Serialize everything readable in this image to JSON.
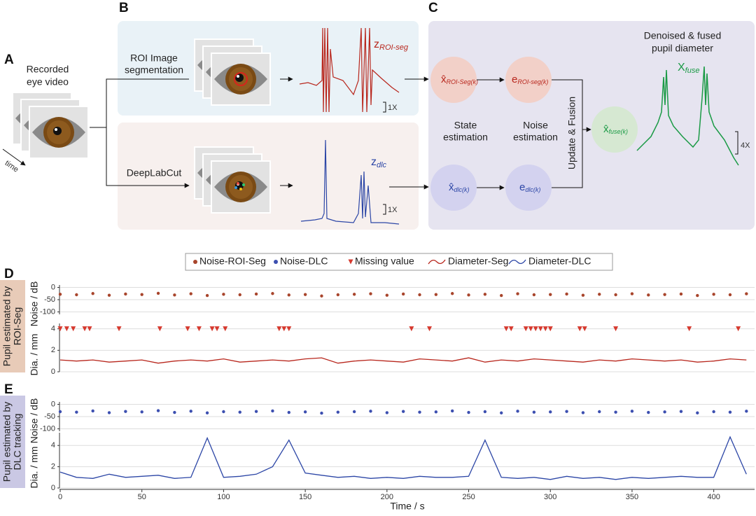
{
  "diagram": {
    "panel_labels": [
      "A",
      "B",
      "C",
      "D",
      "E"
    ],
    "recorded": [
      "Recorded",
      "eye video"
    ],
    "time": "time",
    "roi_seg": [
      "ROI Image",
      "segmentation"
    ],
    "deeplabcut": "DeepLabCut",
    "z_roi": {
      "main": "z",
      "sub": "ROI-seg"
    },
    "z_dlc": {
      "main": "z",
      "sub": "dlc"
    },
    "scale_roi": "1X",
    "scale_dlc": "1X",
    "state_estimation": [
      "State",
      "estimation"
    ],
    "noise_estimation": [
      "Noise",
      "estimation"
    ],
    "update_fusion": "Update & Fusion",
    "fused_title": [
      "Denoised & fused",
      "pupil diameter"
    ],
    "x_fuse": {
      "main": "X",
      "sub": "fuse"
    },
    "scale_fuse": "4X",
    "nodes": [
      {
        "main": "x̂",
        "sub": "ROI-Seg(k)"
      },
      {
        "main": "e",
        "sub": "ROI-seg(k)"
      },
      {
        "main": "x̂",
        "sub": "dlc(k)"
      },
      {
        "main": "e",
        "sub": "dlc(k)"
      },
      {
        "main": "x̂",
        "sub": "fuse(k)"
      }
    ],
    "side_labels": [
      [
        "Pupil estimated by",
        "ROI-Seg"
      ],
      [
        "Pupil estimated by",
        "DLC tracking"
      ]
    ]
  },
  "chart_data": [
    {
      "type": "scatter",
      "ylabel": "Noise / dB",
      "xlim": [
        0,
        425
      ],
      "ylim": [
        -110,
        10
      ],
      "yticks": [
        0,
        -50,
        -100
      ],
      "grid": true,
      "x": [
        0,
        10,
        20,
        30,
        40,
        50,
        60,
        70,
        80,
        90,
        100,
        110,
        120,
        130,
        140,
        150,
        160,
        170,
        180,
        190,
        200,
        210,
        220,
        230,
        240,
        250,
        260,
        270,
        280,
        290,
        300,
        310,
        320,
        330,
        340,
        350,
        360,
        370,
        380,
        390,
        400,
        410,
        420
      ],
      "series": [
        {
          "name": "Noise-ROI-Seg",
          "color": "#a8452c",
          "values": [
            -28,
            -30,
            -25,
            -32,
            -27,
            -29,
            -24,
            -31,
            -26,
            -33,
            -28,
            -30,
            -27,
            -25,
            -31,
            -29,
            -35,
            -30,
            -28,
            -26,
            -32,
            -27,
            -30,
            -29,
            -25,
            -31,
            -28,
            -33,
            -26,
            -30,
            -29,
            -27,
            -32,
            -28,
            -30,
            -26,
            -31,
            -29,
            -27,
            -33,
            -28,
            -30,
            -26
          ]
        }
      ]
    },
    {
      "type": "line",
      "ylabel": "Dia. / mm",
      "xlim": [
        0,
        425
      ],
      "ylim": [
        0,
        4.5
      ],
      "yticks": [
        0,
        2,
        4
      ],
      "grid": true,
      "x": [
        0,
        10,
        20,
        30,
        40,
        50,
        60,
        70,
        80,
        90,
        100,
        110,
        120,
        130,
        140,
        150,
        160,
        170,
        180,
        190,
        200,
        210,
        220,
        230,
        240,
        250,
        260,
        270,
        280,
        290,
        300,
        310,
        320,
        330,
        340,
        350,
        360,
        370,
        380,
        390,
        400,
        410,
        420
      ],
      "series": [
        {
          "name": "Diameter-Seg",
          "color": "#b8261c",
          "values": [
            1.1,
            1.0,
            1.1,
            0.9,
            1.0,
            1.1,
            0.8,
            1.0,
            1.1,
            1.0,
            1.2,
            0.9,
            1.0,
            1.1,
            1.0,
            1.2,
            1.3,
            0.8,
            1.0,
            1.1,
            1.0,
            0.9,
            1.2,
            1.1,
            1.0,
            1.3,
            0.9,
            1.1,
            1.0,
            1.2,
            1.1,
            1.0,
            0.9,
            1.1,
            1.0,
            1.2,
            1.1,
            1.0,
            1.1,
            0.9,
            1.0,
            1.2,
            1.1
          ]
        }
      ],
      "missing": {
        "name": "Missing value",
        "color": "#d63a2f",
        "x": [
          0,
          4,
          8,
          15,
          18,
          36,
          61,
          78,
          85,
          93,
          96,
          101,
          134,
          137,
          140,
          215,
          226,
          273,
          276,
          285,
          288,
          291,
          294,
          297,
          300,
          318,
          321,
          340,
          385,
          415
        ]
      }
    },
    {
      "type": "scatter",
      "ylabel": "Noise / dB",
      "xlim": [
        0,
        425
      ],
      "ylim": [
        -110,
        10
      ],
      "yticks": [
        0,
        -50,
        -100
      ],
      "grid": true,
      "x": [
        0,
        10,
        20,
        30,
        40,
        50,
        60,
        70,
        80,
        90,
        100,
        110,
        120,
        130,
        140,
        150,
        160,
        170,
        180,
        190,
        200,
        210,
        220,
        230,
        240,
        250,
        260,
        270,
        280,
        290,
        300,
        310,
        320,
        330,
        340,
        350,
        360,
        370,
        380,
        390,
        400,
        410,
        420
      ],
      "series": [
        {
          "name": "Noise-DLC",
          "color": "#3c4fb0",
          "values": [
            -30,
            -32,
            -27,
            -34,
            -29,
            -31,
            -26,
            -33,
            -28,
            -35,
            -30,
            -32,
            -29,
            -27,
            -33,
            -31,
            -36,
            -32,
            -30,
            -28,
            -34,
            -29,
            -32,
            -31,
            -27,
            -33,
            -30,
            -35,
            -28,
            -32,
            -31,
            -29,
            -34,
            -30,
            -32,
            -28,
            -33,
            -31,
            -29,
            -35,
            -30,
            -32,
            -28
          ]
        }
      ]
    },
    {
      "type": "line",
      "ylabel": "Dia. / mm",
      "xlabel": "Time / s",
      "xlim": [
        0,
        425
      ],
      "ylim": [
        0,
        5.2
      ],
      "yticks": [
        0,
        2,
        4
      ],
      "xticks": [
        0,
        50,
        100,
        150,
        200,
        250,
        300,
        350,
        400
      ],
      "grid": true,
      "x": [
        0,
        10,
        20,
        30,
        40,
        50,
        60,
        70,
        80,
        90,
        100,
        110,
        120,
        130,
        140,
        150,
        160,
        170,
        180,
        190,
        200,
        210,
        220,
        230,
        240,
        250,
        260,
        270,
        280,
        290,
        300,
        310,
        320,
        330,
        340,
        350,
        360,
        370,
        380,
        390,
        400,
        410,
        420
      ],
      "series": [
        {
          "name": "Diameter-DLC",
          "color": "#2c46a6",
          "values": [
            1.5,
            1.0,
            0.9,
            1.3,
            1.0,
            1.1,
            1.2,
            0.9,
            1.0,
            4.7,
            1.0,
            1.1,
            1.3,
            2.0,
            4.5,
            1.4,
            1.2,
            1.0,
            1.1,
            0.9,
            1.0,
            0.9,
            1.1,
            1.0,
            1.0,
            1.1,
            4.5,
            1.0,
            0.9,
            1.0,
            0.8,
            1.1,
            0.9,
            1.0,
            0.8,
            1.0,
            0.9,
            1.0,
            1.1,
            1.0,
            1.0,
            4.8,
            1.3
          ]
        }
      ]
    }
  ]
}
